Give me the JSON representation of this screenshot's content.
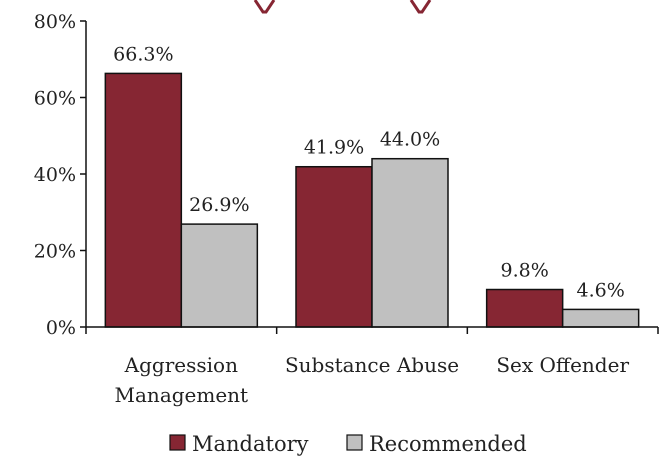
{
  "chart_data": {
    "type": "bar",
    "categories": [
      [
        "Aggression",
        "Management"
      ],
      [
        "Substance Abuse"
      ],
      [
        "Sex Offender"
      ]
    ],
    "series": [
      {
        "name": "Mandatory",
        "values": [
          66.3,
          41.9,
          9.8
        ],
        "labels": [
          "66.3%",
          "41.9%",
          "9.8%"
        ],
        "color": "#862633"
      },
      {
        "name": "Recommended",
        "values": [
          26.9,
          44.0,
          4.6
        ],
        "labels": [
          "26.9%",
          "44.0%",
          "4.6%"
        ],
        "color": "#c0c0c0"
      }
    ],
    "ylim": [
      0,
      80
    ],
    "yticks": [
      0,
      20,
      40,
      60,
      80
    ],
    "ytick_labels": [
      "0%",
      "20%",
      "40%",
      "60%",
      "80%"
    ],
    "legend_position": "bottom",
    "grid": false
  }
}
